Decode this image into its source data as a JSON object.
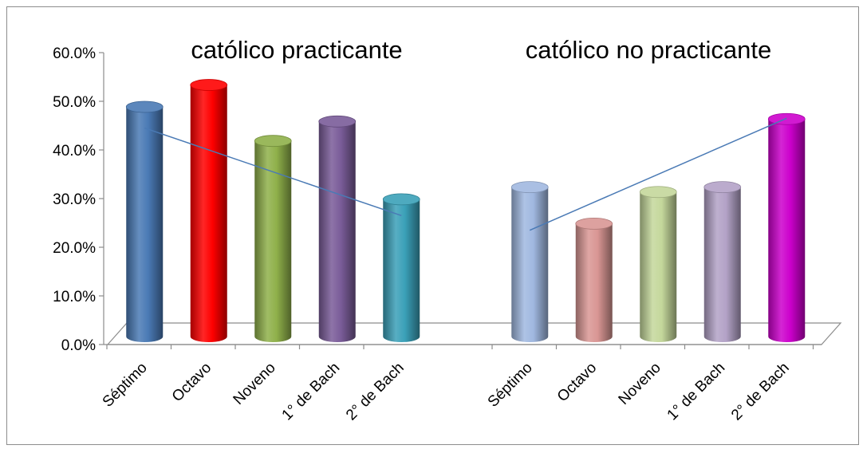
{
  "chart_data": {
    "type": "bar",
    "title": "",
    "xlabel": "",
    "ylabel": "",
    "ylim": [
      0,
      0.6
    ],
    "y_ticks": [
      "0.0%",
      "10.0%",
      "20.0%",
      "30.0%",
      "40.0%",
      "50.0%",
      "60.0%"
    ],
    "grid": false,
    "legend": "none",
    "style": "3d-cylinder",
    "groups": [
      {
        "name": "católico practicante",
        "categories": [
          "Séptimo",
          "Octavo",
          "Noveno",
          "1° de Bach",
          "2° de Bach"
        ],
        "values": [
          0.5,
          0.545,
          0.43,
          0.47,
          0.31
        ],
        "colors": [
          "#4a7ab5",
          "#ff0000",
          "#8fb04a",
          "#7a5c99",
          "#3aa0b8"
        ],
        "trendline": {
          "color": "#4a7ab5",
          "start": 0.445,
          "end": 0.265
        }
      },
      {
        "name": "católico no practicante",
        "categories": [
          "Séptimo",
          "Octavo",
          "Noveno",
          "1° de Bach",
          "2° de Bach"
        ],
        "values": [
          0.335,
          0.26,
          0.325,
          0.335,
          0.475
        ],
        "colors": [
          "#a0b8e0",
          "#d99694",
          "#c4d79b",
          "#b3a2c7",
          "#cc00cc"
        ],
        "trendline": {
          "color": "#4a7ab5",
          "start": 0.235,
          "end": 0.465
        }
      }
    ]
  }
}
